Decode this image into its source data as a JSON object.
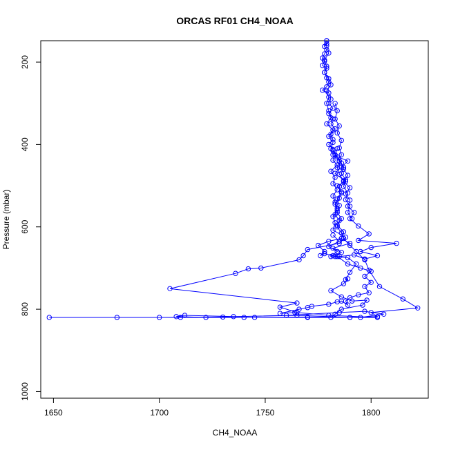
{
  "chart_data": {
    "type": "line",
    "title": "ORCAS RF01 CH4_NOAA",
    "xlabel": "CH4_NOAA",
    "ylabel": "Pressure (mbar)",
    "xlim": [
      1644,
      1827
    ],
    "ylim": [
      1016,
      148
    ],
    "y_reversed": true,
    "x_ticks": [
      1650,
      1700,
      1750,
      1800
    ],
    "y_ticks": [
      200,
      400,
      600,
      800,
      1000
    ],
    "grid": false,
    "marker": "open-circle",
    "color": "#0000ff",
    "series": [
      {
        "points": [
          [
            1779,
            148
          ],
          [
            1779,
            155
          ],
          [
            1778,
            162
          ],
          [
            1779,
            170
          ],
          [
            1778,
            180
          ],
          [
            1777,
            190
          ],
          [
            1778,
            198
          ],
          [
            1777,
            208
          ],
          [
            1779,
            215
          ],
          [
            1778,
            225
          ],
          [
            1779,
            238
          ],
          [
            1780,
            248
          ],
          [
            1779,
            260
          ],
          [
            1777,
            268
          ],
          [
            1780,
            275
          ],
          [
            1781,
            290
          ],
          [
            1780,
            300
          ],
          [
            1782,
            312
          ],
          [
            1780,
            325
          ],
          [
            1782,
            338
          ],
          [
            1781,
            350
          ],
          [
            1783,
            362
          ],
          [
            1781,
            375
          ],
          [
            1782,
            388
          ],
          [
            1780,
            400
          ],
          [
            1782,
            412
          ],
          [
            1783,
            425
          ],
          [
            1782,
            438
          ],
          [
            1784,
            450
          ],
          [
            1781,
            465
          ],
          [
            1783,
            480
          ],
          [
            1782,
            495
          ],
          [
            1784,
            510
          ],
          [
            1782,
            525
          ],
          [
            1783,
            540
          ],
          [
            1784,
            555
          ],
          [
            1783,
            570
          ],
          [
            1785,
            585
          ],
          [
            1784,
            600
          ],
          [
            1786,
            615
          ],
          [
            1787,
            628
          ],
          [
            1790,
            645
          ],
          [
            1793,
            660
          ],
          [
            1797,
            680
          ],
          [
            1799,
            705
          ],
          [
            1804,
            745
          ],
          [
            1815,
            775
          ],
          [
            1822,
            797
          ],
          [
            1800,
            808
          ],
          [
            1803,
            818
          ],
          [
            1790,
            820
          ],
          [
            1770,
            820
          ],
          [
            1740,
            820
          ],
          [
            1710,
            820
          ],
          [
            1680,
            820
          ],
          [
            1648,
            820
          ],
          [
            1700,
            820
          ],
          [
            1730,
            819
          ],
          [
            1760,
            815
          ],
          [
            1785,
            808
          ],
          [
            1797,
            805
          ],
          [
            1806,
            812
          ],
          [
            1795,
            820
          ],
          [
            1770,
            819
          ],
          [
            1745,
            820
          ],
          [
            1722,
            820
          ],
          [
            1708,
            818
          ],
          [
            1712,
            815
          ],
          [
            1735,
            818
          ],
          [
            1765,
            815
          ],
          [
            1790,
            820
          ],
          [
            1803,
            820
          ],
          [
            1780,
            815
          ],
          [
            1765,
            808
          ],
          [
            1757,
            795
          ],
          [
            1765,
            785
          ],
          [
            1705,
            750
          ],
          [
            1736,
            713
          ],
          [
            1742,
            702
          ],
          [
            1748,
            700
          ],
          [
            1766,
            680
          ],
          [
            1768,
            670
          ],
          [
            1770,
            655
          ],
          [
            1785,
            640
          ],
          [
            1788,
            625
          ],
          [
            1782,
            608
          ],
          [
            1783,
            590
          ],
          [
            1782,
            575
          ],
          [
            1784,
            560
          ],
          [
            1783,
            545
          ],
          [
            1785,
            530
          ],
          [
            1786,
            515
          ],
          [
            1784,
            500
          ],
          [
            1788,
            490
          ],
          [
            1783,
            470
          ],
          [
            1786,
            455
          ],
          [
            1789,
            440
          ],
          [
            1782,
            425
          ],
          [
            1781,
            410
          ],
          [
            1782,
            395
          ],
          [
            1780,
            380
          ],
          [
            1782,
            365
          ],
          [
            1779,
            350
          ],
          [
            1781,
            335
          ],
          [
            1780,
            318
          ],
          [
            1779,
            300
          ],
          [
            1780,
            285
          ],
          [
            1779,
            270
          ],
          [
            1781,
            255
          ],
          [
            1780,
            240
          ],
          [
            1778,
            225
          ],
          [
            1779,
            210
          ],
          [
            1778,
            195
          ],
          [
            1780,
            178
          ],
          [
            1779,
            160
          ],
          [
            1779,
            148
          ]
        ]
      },
      {
        "points": [
          [
            1782,
            415
          ],
          [
            1784,
            430
          ],
          [
            1786,
            445
          ],
          [
            1787,
            460
          ],
          [
            1789,
            475
          ],
          [
            1787,
            490
          ],
          [
            1790,
            505
          ],
          [
            1788,
            520
          ],
          [
            1790,
            535
          ],
          [
            1789,
            550
          ],
          [
            1792,
            565
          ],
          [
            1790,
            580
          ],
          [
            1794,
            598
          ],
          [
            1799,
            617
          ],
          [
            1794,
            633
          ],
          [
            1812,
            640
          ],
          [
            1800,
            650
          ],
          [
            1795,
            660
          ],
          [
            1803,
            670
          ],
          [
            1797,
            678
          ],
          [
            1792,
            668
          ],
          [
            1785,
            672
          ],
          [
            1783,
            672
          ],
          [
            1786,
            662
          ],
          [
            1782,
            652
          ],
          [
            1790,
            640
          ],
          [
            1786,
            628
          ],
          [
            1787,
            612
          ],
          [
            1784,
            596
          ],
          [
            1786,
            580
          ],
          [
            1784,
            565
          ],
          [
            1785,
            548
          ],
          [
            1784,
            532
          ],
          [
            1786,
            518
          ],
          [
            1785,
            502
          ],
          [
            1787,
            488
          ],
          [
            1785,
            472
          ],
          [
            1784,
            456
          ],
          [
            1785,
            441
          ],
          [
            1783,
            426
          ],
          [
            1784,
            410
          ]
        ]
      },
      {
        "points": [
          [
            1786,
            628
          ],
          [
            1780,
            635
          ],
          [
            1775,
            645
          ],
          [
            1778,
            660
          ],
          [
            1776,
            670
          ],
          [
            1778,
            665
          ],
          [
            1782,
            670
          ],
          [
            1784,
            672
          ],
          [
            1789,
            690
          ],
          [
            1795,
            700
          ],
          [
            1800,
            708
          ],
          [
            1797,
            720
          ],
          [
            1800,
            735
          ],
          [
            1797,
            745
          ],
          [
            1799,
            760
          ],
          [
            1794,
            765
          ],
          [
            1790,
            772
          ],
          [
            1788,
            780
          ],
          [
            1789,
            790
          ],
          [
            1786,
            780
          ],
          [
            1784,
            782
          ],
          [
            1780,
            788
          ],
          [
            1772,
            793
          ],
          [
            1770,
            796
          ],
          [
            1766,
            800
          ],
          [
            1757,
            810
          ],
          [
            1764,
            808
          ]
        ]
      },
      {
        "points": [
          [
            1782,
            620
          ],
          [
            1785,
            635
          ],
          [
            1780,
            648
          ],
          [
            1784,
            660
          ],
          [
            1781,
            672
          ],
          [
            1789,
            675
          ],
          [
            1793,
            690
          ],
          [
            1790,
            710
          ],
          [
            1788,
            728
          ],
          [
            1789,
            726
          ],
          [
            1787,
            738
          ],
          [
            1781,
            755
          ],
          [
            1786,
            770
          ],
          [
            1791,
            780
          ],
          [
            1798,
            778
          ],
          [
            1796,
            790
          ],
          [
            1786,
            800
          ],
          [
            1783,
            812
          ],
          [
            1781,
            820
          ]
        ]
      },
      {
        "points": [
          [
            1783,
            300
          ],
          [
            1784,
            318
          ],
          [
            1783,
            338
          ],
          [
            1785,
            355
          ],
          [
            1784,
            372
          ],
          [
            1786,
            390
          ],
          [
            1785,
            408
          ],
          [
            1786,
            425
          ],
          [
            1785,
            440
          ],
          [
            1787,
            455
          ],
          [
            1786,
            470
          ],
          [
            1788,
            486
          ],
          [
            1787,
            502
          ],
          [
            1789,
            518
          ],
          [
            1788,
            534
          ],
          [
            1790,
            550
          ],
          [
            1789,
            565
          ],
          [
            1791,
            580
          ]
        ]
      }
    ]
  }
}
